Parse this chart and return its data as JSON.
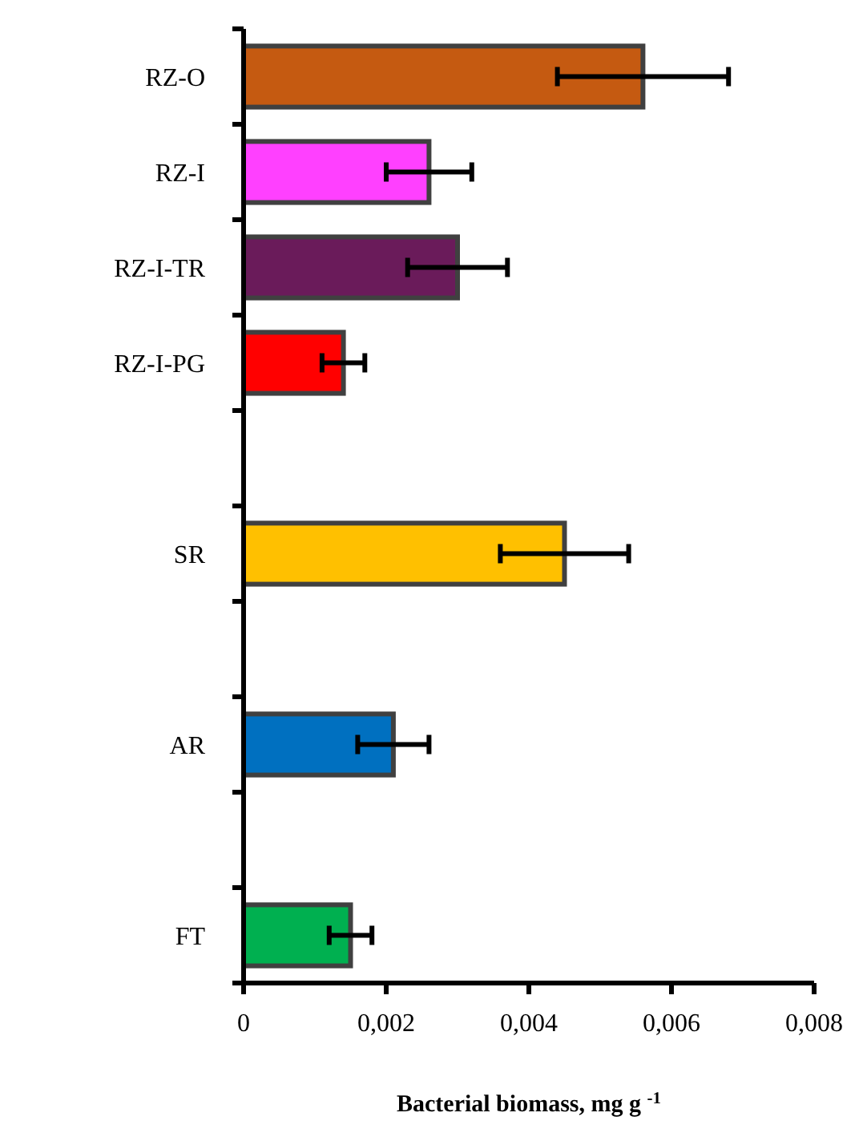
{
  "chart_data": {
    "type": "bar",
    "orientation": "horizontal",
    "xlabel": "Bacterial biomass, mg g $^{-1}$",
    "categories": [
      "RZ-O",
      "RZ-I",
      "RZ-I-TR",
      "RZ-I-PG",
      null,
      "SR",
      null,
      "AR",
      null,
      "FT"
    ],
    "values": [
      0.0056,
      0.0026,
      0.003,
      0.0014,
      null,
      0.0045,
      null,
      0.0021,
      null,
      0.0015
    ],
    "errors": [
      [
        0.0044,
        0.0068
      ],
      [
        0.002,
        0.0032
      ],
      [
        0.0023,
        0.0037
      ],
      [
        0.0011,
        0.0017
      ],
      null,
      [
        0.0036,
        0.0054
      ],
      null,
      [
        0.0016,
        0.0026
      ],
      null,
      [
        0.0012,
        0.0018
      ]
    ],
    "colors": [
      "#c55a11",
      "#ff40ff",
      "#6a1b5a",
      "#ff0000",
      null,
      "#ffc000",
      null,
      "#0070c0",
      null,
      "#00b050"
    ],
    "xlim": [
      0,
      0.008
    ],
    "xticks": [
      {
        "value": 0,
        "label": "0"
      },
      {
        "value": 0.002,
        "label": "0,002"
      },
      {
        "value": 0.004,
        "label": "0,004"
      },
      {
        "value": 0.006,
        "label": "0,006"
      },
      {
        "value": 0.008,
        "label": "0,008"
      }
    ],
    "grid": false
  }
}
